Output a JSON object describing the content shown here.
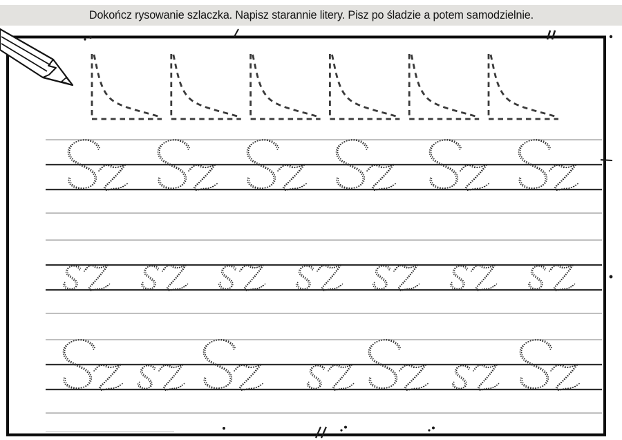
{
  "header": {
    "instruction": "Dokończ rysowanie szlaczka. Napisz starannie litery. Pisz po śladzie a potem samodzielnie."
  },
  "pattern_row": {
    "shape": "dashed-corner-curve-triangle",
    "repeat": 6
  },
  "practice_rows": [
    {
      "ruling": "4-line",
      "sequence": [
        "Sz",
        "Sz",
        "Sz",
        "Sz",
        "Sz",
        "Sz"
      ]
    },
    {
      "ruling": "4-line",
      "sequence": [
        "sz",
        "sz",
        "sz",
        "sz",
        "sz",
        "sz",
        "sz"
      ]
    },
    {
      "ruling": "4-line",
      "sequence": [
        "Sz",
        "sz",
        "Sz",
        "sz",
        "Sz",
        "sz",
        "Sz"
      ]
    }
  ],
  "letters": {
    "uppercase_pair": "Sz",
    "lowercase_pair": "sz"
  },
  "icons": {
    "pencil": "pencil-icon"
  },
  "colors": {
    "header_bg": "#e3e2df",
    "frame": "#0d0d0d",
    "thick_line": "#2e2e2e",
    "thin_line": "#999999",
    "trace_dots": "#2f2f2f",
    "pattern_dash": "#3a3a3a",
    "ink": "#141414"
  }
}
